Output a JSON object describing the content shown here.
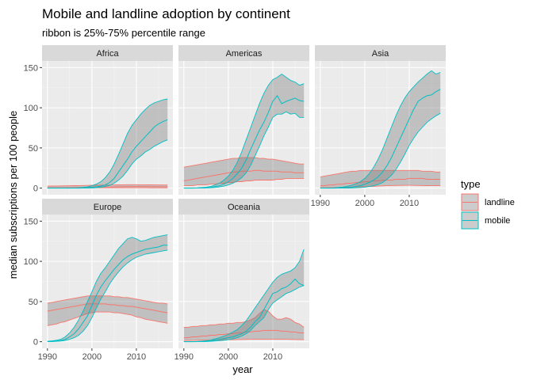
{
  "chart_data": {
    "type": "line",
    "title": "Mobile and landline adoption by continent",
    "subtitle": "ribbon is 25%-75% percentile range",
    "xlabel": "year",
    "ylabel": "median subscriptions per 100 people",
    "xlim": [
      1990,
      2017
    ],
    "ylim": [
      0,
      150
    ],
    "x_ticks": [
      1990,
      2000,
      2010
    ],
    "y_ticks": [
      0,
      50,
      100,
      150
    ],
    "grid": true,
    "legend": {
      "title": "type",
      "position": "right",
      "entries": [
        {
          "name": "landline",
          "color": "#F8766D"
        },
        {
          "name": "mobile",
          "color": "#00BFC4"
        }
      ]
    },
    "colors": {
      "panel": "#EBEBEB",
      "strip": "#D9D9D9",
      "grid_major": "#FFFFFF",
      "ribbon_fill": "#7F7F7F"
    },
    "years": [
      1990,
      1991,
      1992,
      1993,
      1994,
      1995,
      1996,
      1997,
      1998,
      1999,
      2000,
      2001,
      2002,
      2003,
      2004,
      2005,
      2006,
      2007,
      2008,
      2009,
      2010,
      2011,
      2012,
      2013,
      2014,
      2015,
      2016,
      2017
    ],
    "panels": [
      {
        "name": "Africa",
        "series": [
          {
            "name": "landline",
            "median": [
              0.5,
              0.5,
              0.5,
              0.6,
              0.6,
              0.7,
              0.7,
              0.8,
              0.9,
              1.0,
              1.1,
              1.2,
              1.3,
              1.4,
              1.5,
              1.6,
              1.7,
              1.8,
              1.9,
              2.0,
              2.0,
              2.0,
              1.9,
              1.9,
              1.8,
              1.8,
              1.7,
              1.7
            ],
            "low": [
              0.2,
              0.2,
              0.2,
              0.2,
              0.2,
              0.3,
              0.3,
              0.3,
              0.3,
              0.3,
              0.4,
              0.4,
              0.4,
              0.4,
              0.4,
              0.4,
              0.4,
              0.4,
              0.4,
              0.4,
              0.4,
              0.4,
              0.4,
              0.3,
              0.3,
              0.3,
              0.3,
              0.3
            ],
            "high": [
              2.5,
              2.6,
              2.7,
              2.8,
              2.9,
              3.0,
              3.1,
              3.2,
              3.3,
              3.4,
              3.5,
              3.6,
              3.7,
              3.8,
              3.9,
              4.0,
              4.1,
              4.2,
              4.3,
              4.3,
              4.3,
              4.2,
              4.2,
              4.1,
              4.0,
              4.0,
              3.9,
              3.9
            ]
          },
          {
            "name": "mobile",
            "median": [
              0,
              0,
              0,
              0,
              0,
              0,
              0,
              0,
              0.1,
              0.3,
              0.8,
              1.5,
              2.5,
              4,
              7,
              12,
              20,
              28,
              36,
              45,
              52,
              58,
              64,
              70,
              76,
              80,
              83,
              85
            ],
            "low": [
              0,
              0,
              0,
              0,
              0,
              0,
              0,
              0,
              0,
              0.1,
              0.2,
              0.5,
              1,
              2,
              3.5,
              6,
              10,
              15,
              22,
              30,
              36,
              40,
              45,
              48,
              52,
              55,
              58,
              60
            ],
            "high": [
              0,
              0,
              0,
              0,
              0,
              0.1,
              0.2,
              0.4,
              0.8,
              1.5,
              3,
              5,
              8,
              13,
              20,
              30,
              42,
              55,
              68,
              78,
              85,
              92,
              98,
              103,
              106,
              108,
              110,
              111
            ]
          }
        ]
      },
      {
        "name": "Americas",
        "series": [
          {
            "name": "landline",
            "median": [
              9,
              10,
              11,
              12,
              13,
              14,
              15,
              16,
              17,
              18,
              19,
              20,
              20,
              21,
              21,
              21,
              22,
              22,
              21,
              21,
              21,
              21,
              20,
              20,
              20,
              19,
              19,
              19
            ],
            "low": [
              3,
              3,
              3,
              4,
              4,
              4,
              5,
              5,
              6,
              6,
              7,
              7,
              8,
              8,
              9,
              9,
              10,
              10,
              10,
              10,
              10,
              11,
              11,
              12,
              12,
              12,
              12,
              12
            ],
            "high": [
              26,
              27,
              28,
              29,
              30,
              31,
              32,
              33,
              34,
              35,
              36,
              37,
              37,
              38,
              38,
              38,
              38,
              37,
              37,
              36,
              36,
              35,
              34,
              33,
              32,
              31,
              30,
              30
            ]
          },
          {
            "name": "mobile",
            "median": [
              0,
              0,
              0,
              0.1,
              0.3,
              0.6,
              1,
              2,
              3,
              5,
              8,
              12,
              18,
              25,
              35,
              48,
              60,
              72,
              82,
              94,
              108,
              115,
              105,
              108,
              110,
              112,
              109,
              108
            ],
            "low": [
              0,
              0,
              0,
              0,
              0.1,
              0.2,
              0.4,
              0.8,
              1.5,
              2.5,
              4,
              6,
              9,
              13,
              19,
              28,
              40,
              52,
              65,
              76,
              88,
              92,
              92,
              95,
              92,
              93,
              88,
              88
            ],
            "high": [
              0,
              0,
              0.1,
              0.3,
              0.7,
              1.2,
              2,
              4,
              6,
              10,
              15,
              22,
              32,
              45,
              60,
              75,
              90,
              105,
              118,
              128,
              135,
              138,
              142,
              138,
              134,
              132,
              128,
              130
            ]
          }
        ]
      },
      {
        "name": "Asia",
        "series": [
          {
            "name": "landline",
            "median": [
              3,
              3,
              4,
              4,
              5,
              5,
              6,
              6,
              7,
              7,
              8,
              8,
              9,
              9,
              10,
              10,
              10,
              11,
              11,
              11,
              12,
              12,
              12,
              12,
              11,
              11,
              11,
              11
            ],
            "low": [
              0.5,
              0.5,
              0.6,
              0.7,
              0.8,
              0.9,
              1,
              1.2,
              1.4,
              1.6,
              1.8,
              2,
              2.2,
              2.5,
              2.8,
              3,
              3.2,
              3.3,
              3.4,
              3.5,
              3.5,
              3.4,
              3.3,
              3.2,
              3.1,
              3,
              3,
              3
            ],
            "high": [
              14,
              15,
              16,
              17,
              18,
              19,
              20,
              21,
              21,
              22,
              22,
              22,
              22,
              22,
              22,
              22,
              22,
              22,
              22,
              22,
              22,
              22,
              22,
              21,
              21,
              21,
              20,
              20
            ]
          },
          {
            "name": "mobile",
            "median": [
              0,
              0,
              0,
              0,
              0.1,
              0.3,
              0.6,
              1,
              2,
              3,
              5,
              7,
              10,
              14,
              20,
              28,
              38,
              50,
              62,
              74,
              86,
              98,
              108,
              112,
              115,
              116,
              120,
              123
            ],
            "low": [
              0,
              0,
              0,
              0,
              0,
              0,
              0.1,
              0.2,
              0.4,
              0.7,
              1.2,
              2,
              3,
              4.5,
              7,
              11,
              16,
              23,
              32,
              42,
              53,
              62,
              70,
              76,
              82,
              86,
              90,
              93
            ],
            "high": [
              0,
              0,
              0.1,
              0.3,
              0.7,
              1.3,
              2.2,
              3.5,
              5.5,
              8,
              12,
              18,
              26,
              36,
              48,
              62,
              76,
              90,
              102,
              112,
              120,
              126,
              132,
              137,
              142,
              146,
              142,
              144
            ]
          }
        ]
      },
      {
        "name": "Europe",
        "series": [
          {
            "name": "landline",
            "median": [
              38,
              39,
              40,
              41,
              42,
              43,
              44,
              45,
              46,
              47,
              47,
              47,
              47,
              47,
              46,
              46,
              45,
              45,
              44,
              44,
              43,
              42,
              41,
              40,
              39,
              38,
              37,
              36
            ],
            "low": [
              20,
              21,
              22,
              24,
              25,
              27,
              29,
              31,
              33,
              35,
              36,
              37,
              37,
              37,
              37,
              36,
              36,
              35,
              34,
              33,
              31,
              30,
              28,
              27,
              26,
              25,
              24,
              23
            ],
            "high": [
              48,
              49,
              50,
              51,
              52,
              53,
              54,
              55,
              56,
              57,
              57,
              57,
              57,
              57,
              57,
              56,
              56,
              55,
              55,
              54,
              53,
              52,
              51,
              50,
              49,
              48,
              48,
              47
            ]
          },
          {
            "name": "mobile",
            "median": [
              0.2,
              0.4,
              0.8,
              1.5,
              3,
              6,
              10,
              16,
              24,
              32,
              45,
              58,
              68,
              76,
              83,
              90,
              96,
              102,
              106,
              109,
              111,
              113,
              115,
              116,
              117,
              118,
              120,
              120
            ],
            "low": [
              0.1,
              0.2,
              0.4,
              0.8,
              1.5,
              3,
              5,
              8,
              13,
              20,
              30,
              42,
              53,
              62,
              72,
              80,
              87,
              93,
              98,
              102,
              105,
              107,
              109,
              110,
              111,
              112,
              113,
              114
            ],
            "high": [
              0.5,
              1,
              1.8,
              3,
              6,
              11,
              18,
              27,
              38,
              50,
              62,
              75,
              85,
              92,
              100,
              108,
              116,
              122,
              128,
              130,
              128,
              125,
              126,
              128,
              130,
              131,
              132,
              133
            ]
          }
        ]
      },
      {
        "name": "Oceania",
        "series": [
          {
            "name": "landline",
            "median": [
              5,
              5,
              6,
              6,
              7,
              7,
              8,
              8,
              9,
              9,
              10,
              10,
              11,
              11,
              12,
              12,
              13,
              13,
              14,
              14,
              14,
              14,
              13,
              13,
              12,
              12,
              11,
              11
            ],
            "low": [
              1.5,
              1.6,
              1.7,
              1.8,
              1.9,
              2,
              2.1,
              2.2,
              2.3,
              2.4,
              2.5,
              2.6,
              2.7,
              2.8,
              2.9,
              3,
              3,
              3,
              3,
              3,
              3,
              3,
              3,
              3,
              2.9,
              2.8,
              2.7,
              2.6
            ],
            "high": [
              18,
              18,
              19,
              19,
              20,
              20,
              21,
              21,
              22,
              22,
              23,
              23,
              24,
              24,
              25,
              27,
              30,
              35,
              40,
              38,
              32,
              28,
              28,
              30,
              28,
              24,
              22,
              18
            ]
          },
          {
            "name": "mobile",
            "median": [
              0,
              0,
              0,
              0.1,
              0.2,
              0.5,
              1,
              2,
              3,
              4,
              5,
              6,
              8,
              10,
              13,
              18,
              25,
              30,
              40,
              50,
              60,
              62,
              66,
              68,
              72,
              78,
              72,
              70
            ],
            "low": [
              0,
              0,
              0,
              0,
              0.1,
              0.2,
              0.4,
              0.8,
              1.2,
              1.8,
              2.5,
              3.5,
              5,
              7,
              10,
              14,
              20,
              25,
              30,
              40,
              48,
              52,
              56,
              60,
              62,
              65,
              68,
              70
            ],
            "high": [
              0,
              0,
              0.1,
              0.3,
              0.6,
              1.2,
              2,
              3.5,
              5,
              7,
              9,
              12,
              15,
              20,
              26,
              34,
              42,
              50,
              58,
              66,
              74,
              80,
              84,
              86,
              88,
              92,
              100,
              115
            ]
          }
        ]
      }
    ]
  }
}
